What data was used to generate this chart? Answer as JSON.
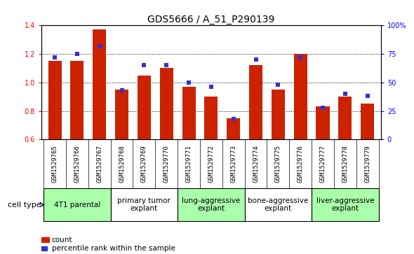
{
  "title": "GDS5666 / A_51_P290139",
  "samples": [
    "GSM1529765",
    "GSM1529766",
    "GSM1529767",
    "GSM1529768",
    "GSM1529769",
    "GSM1529770",
    "GSM1529771",
    "GSM1529772",
    "GSM1529773",
    "GSM1529774",
    "GSM1529775",
    "GSM1529776",
    "GSM1529777",
    "GSM1529778",
    "GSM1529779"
  ],
  "counts": [
    1.15,
    1.15,
    1.37,
    0.95,
    1.05,
    1.1,
    0.97,
    0.9,
    0.75,
    1.12,
    0.95,
    1.2,
    0.83,
    0.9,
    0.85
  ],
  "percentiles": [
    72,
    75,
    82,
    43,
    65,
    65,
    50,
    46,
    18,
    70,
    48,
    72,
    28,
    40,
    38
  ],
  "ylim_left": [
    0.6,
    1.4
  ],
  "ylim_right": [
    0,
    100
  ],
  "yticks_left": [
    0.6,
    0.8,
    1.0,
    1.2,
    1.4
  ],
  "yticks_right": [
    0,
    25,
    50,
    75,
    100
  ],
  "ytick_labels_right": [
    "0",
    "25",
    "50",
    "75",
    "100%"
  ],
  "bar_color": "#cc2200",
  "marker_color": "#3333cc",
  "bg_color_plot": "#ffffff",
  "sample_label_bg": "#cccccc",
  "groups": [
    {
      "label": "4T1 parental",
      "start": 0,
      "end": 3,
      "color": "#aaffaa"
    },
    {
      "label": "primary tumor\nexplant",
      "start": 3,
      "end": 6,
      "color": "#ffffff"
    },
    {
      "label": "lung-aggressive\nexplant",
      "start": 6,
      "end": 9,
      "color": "#aaffaa"
    },
    {
      "label": "bone-aggressive\nexplant",
      "start": 9,
      "end": 12,
      "color": "#ffffff"
    },
    {
      "label": "liver-aggressive\nexplant",
      "start": 12,
      "end": 15,
      "color": "#aaffaa"
    }
  ],
  "cell_type_label": "cell type",
  "legend_count_label": "count",
  "legend_pct_label": "percentile rank within the sample",
  "title_fontsize": 10,
  "tick_fontsize": 7,
  "sample_fontsize": 6.5,
  "group_fontsize": 7.5,
  "legend_fontsize": 7.5,
  "cell_type_fontsize": 8
}
